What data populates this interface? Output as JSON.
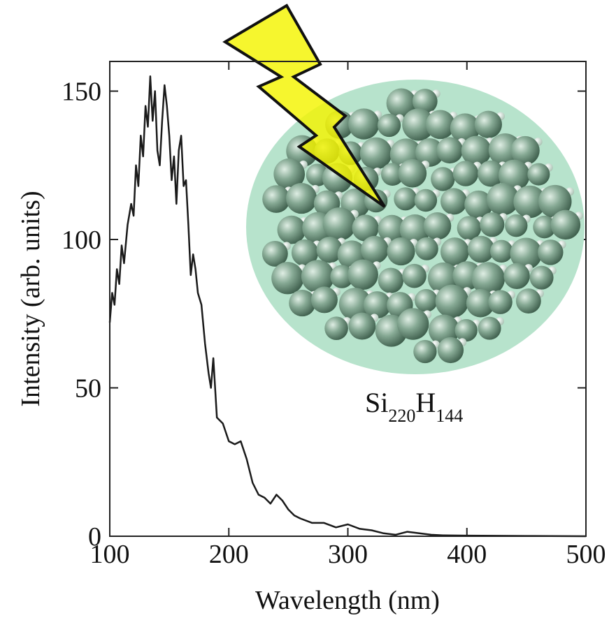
{
  "chart_data": {
    "type": "line",
    "xlabel": "Wavelength (nm)",
    "ylabel": "Intensity (arb. units)",
    "annotation": [
      "Si",
      "220",
      "H",
      "144"
    ],
    "xlim": [
      100,
      500
    ],
    "ylim": [
      0,
      160
    ],
    "xticks": [
      100,
      200,
      300,
      400,
      500
    ],
    "yticks": [
      0,
      50,
      100,
      150
    ],
    "color": "#1a1a1a",
    "x": [
      100,
      102,
      104,
      106,
      108,
      110,
      112,
      115,
      118,
      120,
      122,
      124,
      126,
      128,
      130,
      132,
      134,
      136,
      138,
      140,
      142,
      144,
      146,
      148,
      150,
      152,
      154,
      156,
      158,
      160,
      162,
      164,
      166,
      168,
      170,
      172,
      174,
      177,
      180,
      183,
      185,
      187,
      190,
      195,
      200,
      205,
      210,
      215,
      220,
      225,
      230,
      235,
      240,
      245,
      250,
      255,
      260,
      270,
      280,
      290,
      300,
      310,
      320,
      330,
      340,
      350,
      360,
      370,
      380,
      400,
      450,
      500
    ],
    "values": [
      72,
      82,
      78,
      90,
      85,
      98,
      92,
      105,
      112,
      108,
      125,
      118,
      135,
      128,
      145,
      138,
      155,
      140,
      150,
      130,
      125,
      140,
      152,
      145,
      135,
      120,
      128,
      112,
      130,
      135,
      118,
      120,
      105,
      88,
      95,
      90,
      82,
      78,
      65,
      55,
      50,
      60,
      40,
      38,
      32,
      31,
      32,
      26,
      18,
      14,
      13,
      11,
      14,
      12,
      9,
      7,
      6,
      4.5,
      4.5,
      3,
      4,
      2.5,
      2,
      1,
      0.5,
      1.5,
      1,
      0.5,
      0.3,
      0.2,
      0.1,
      0
    ]
  }
}
